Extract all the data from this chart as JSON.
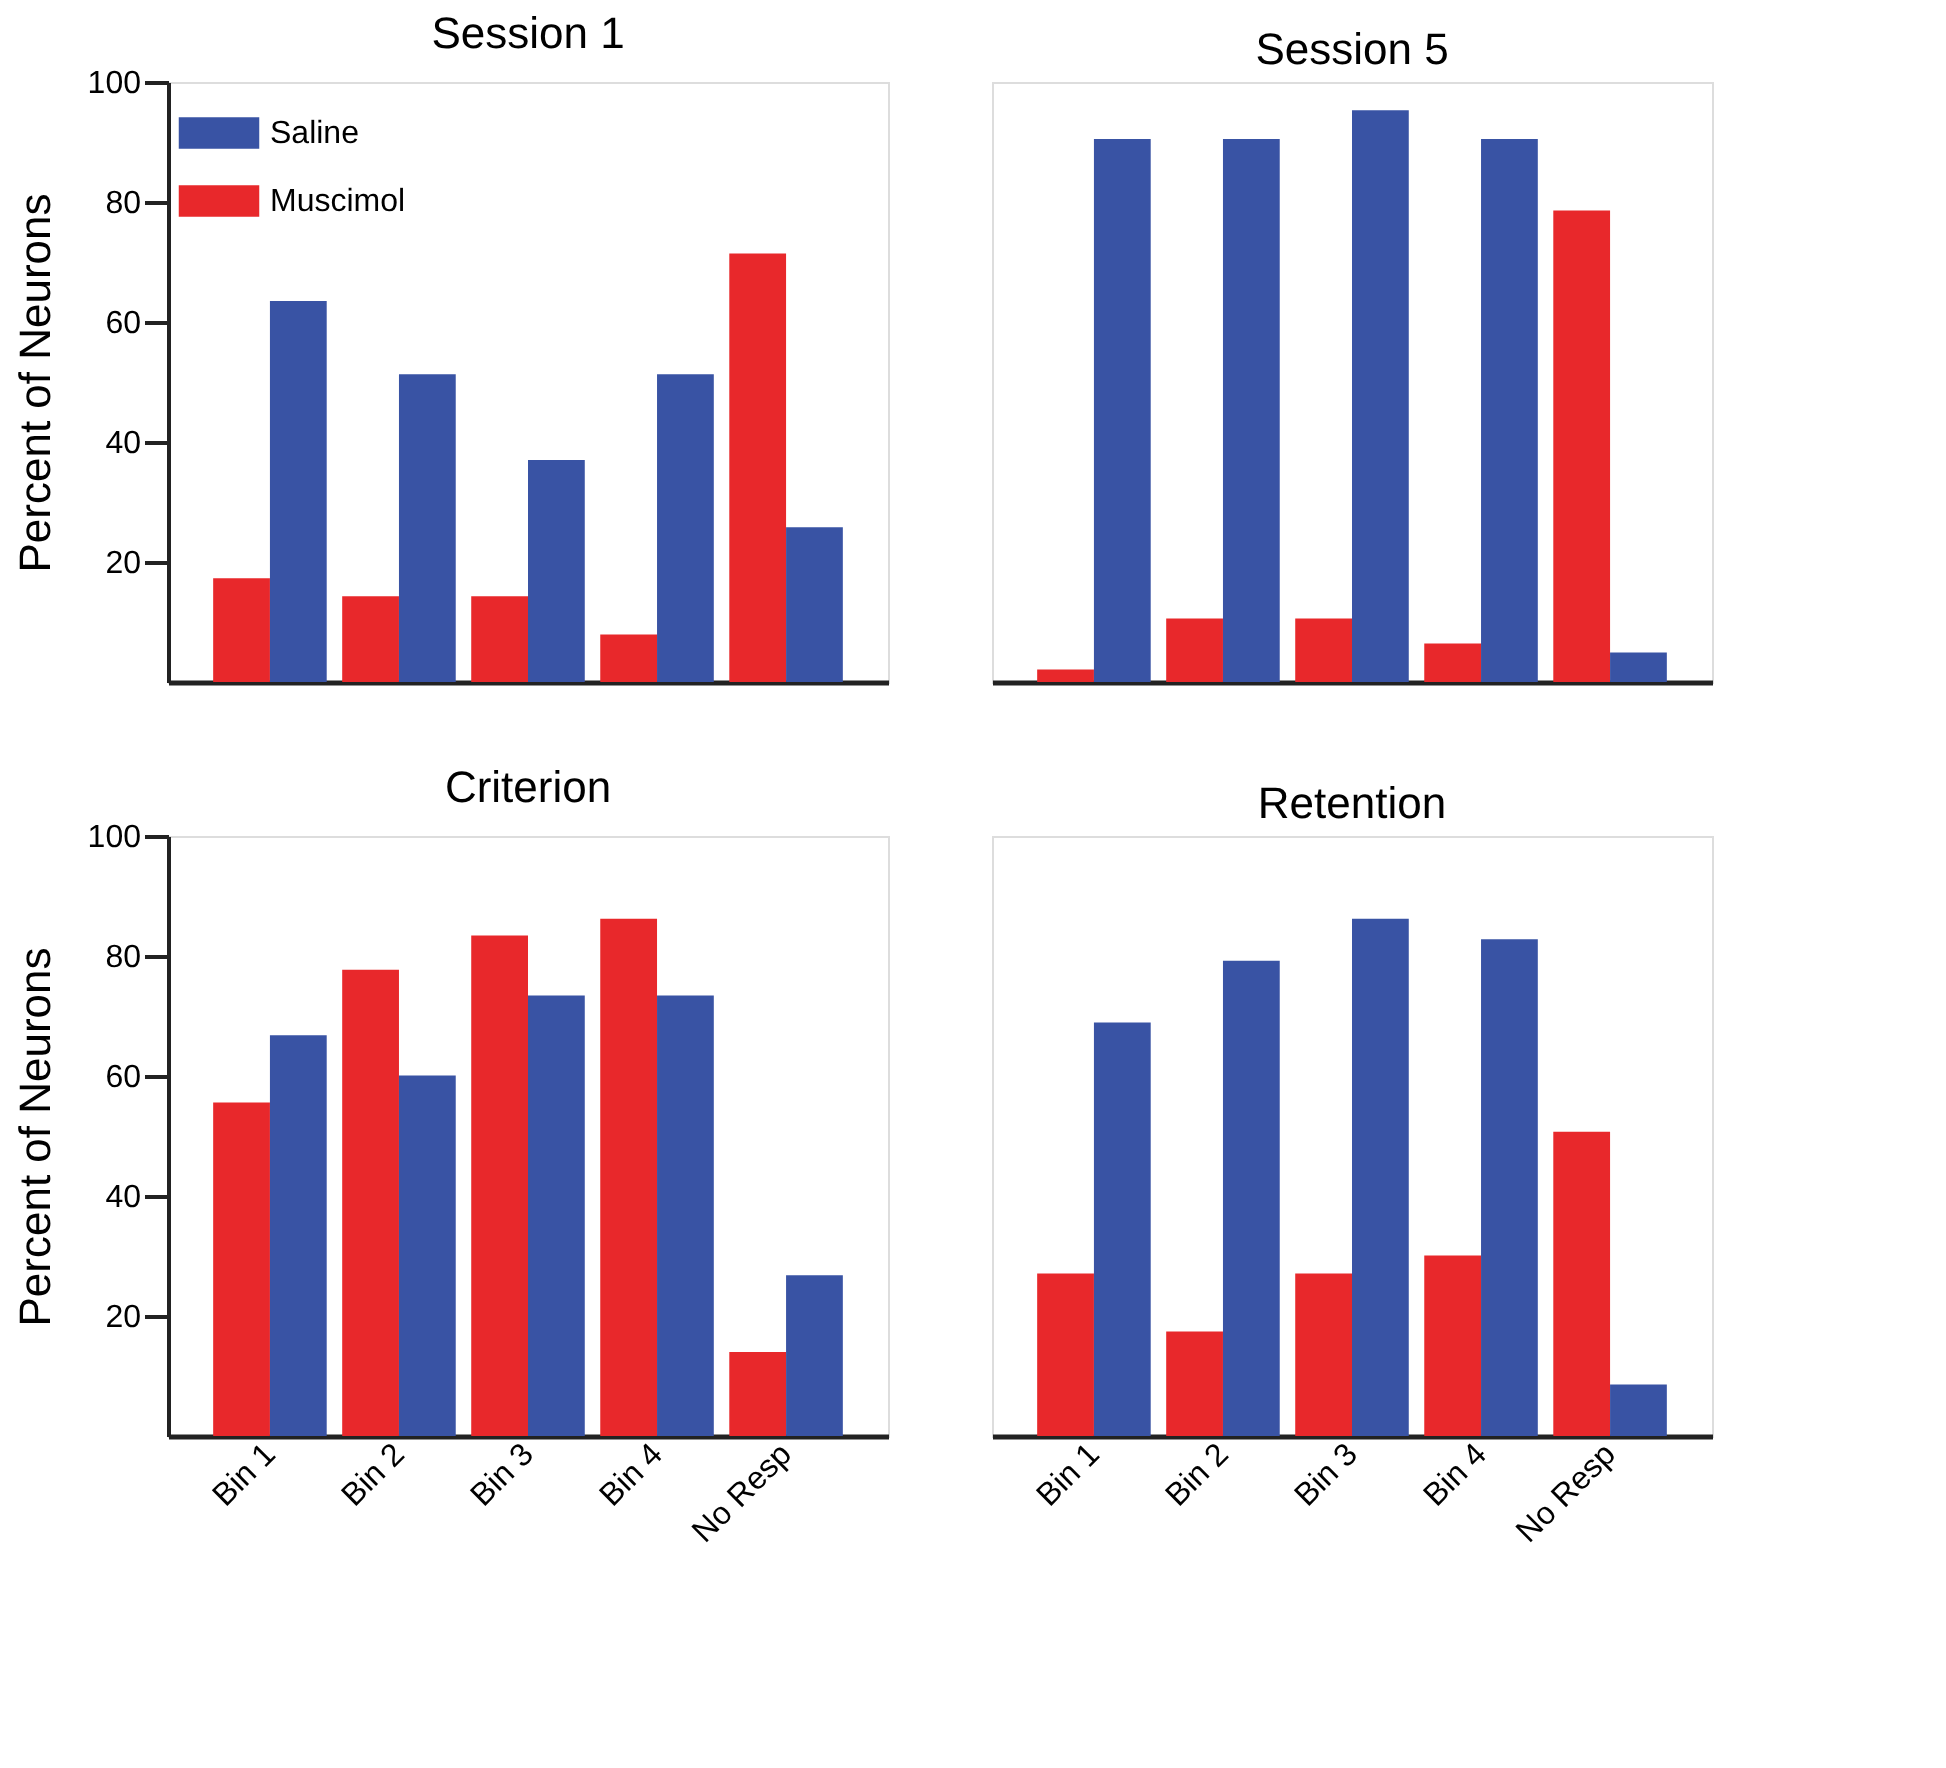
{
  "chart_data": [
    {
      "type": "bar",
      "title": "Session 1",
      "ylabel": "Percent of Neurons",
      "categories": [
        "Bin 1",
        "Bin 2",
        "Bin 3",
        "Bin 4",
        "No Resp"
      ],
      "ylim": [
        0,
        100
      ],
      "yticks": [
        20,
        40,
        60,
        80,
        100
      ],
      "legend": "top left",
      "tick_labels": "y",
      "series": [
        {
          "name": "Muscimol",
          "color": "#e8282b",
          "values": [
            17.3,
            14.3,
            14.3,
            7.9,
            71.4
          ]
        },
        {
          "name": "Saline",
          "color": "#3953a4",
          "values": [
            63.5,
            51.3,
            37.0,
            51.3,
            25.8
          ]
        }
      ]
    },
    {
      "type": "bar",
      "title": "Session 5",
      "categories": [
        "Bin 1",
        "Bin 2",
        "Bin 3",
        "Bin 4",
        "No Resp"
      ],
      "ylim": [
        0,
        100
      ],
      "tick_labels": false,
      "series": [
        {
          "name": "Muscimol",
          "color": "#e8282b",
          "values": [
            2.1,
            10.6,
            10.6,
            6.4,
            78.6
          ]
        },
        {
          "name": "Saline",
          "color": "#3953a4",
          "values": [
            90.5,
            90.5,
            95.3,
            90.5,
            4.9
          ]
        }
      ]
    },
    {
      "type": "bar",
      "title": "Criterion",
      "ylabel": "Percent of Neurons",
      "categories": [
        "Bin 1",
        "Bin 2",
        "Bin 3",
        "Bin 4",
        "No Resp"
      ],
      "ylim": [
        0,
        100
      ],
      "yticks": [
        20,
        40,
        60,
        80,
        100
      ],
      "series": [
        {
          "name": "Muscimol",
          "color": "#e8282b",
          "values": [
            55.6,
            77.7,
            83.4,
            86.2,
            14.0
          ]
        },
        {
          "name": "Saline",
          "color": "#3953a4",
          "values": [
            66.8,
            60.1,
            73.4,
            73.4,
            26.8
          ]
        }
      ]
    },
    {
      "type": "bar",
      "title": "Retention",
      "categories": [
        "Bin 1",
        "Bin 2",
        "Bin 3",
        "Bin 4",
        "No Resp"
      ],
      "ylim": [
        0,
        100
      ],
      "tick_labels": "x",
      "series": [
        {
          "name": "Muscimol",
          "color": "#e8282b",
          "values": [
            27.1,
            17.4,
            27.1,
            30.1,
            50.7
          ]
        },
        {
          "name": "Saline",
          "color": "#3953a4",
          "values": [
            68.9,
            79.2,
            86.2,
            82.8,
            8.6
          ]
        }
      ]
    }
  ]
}
